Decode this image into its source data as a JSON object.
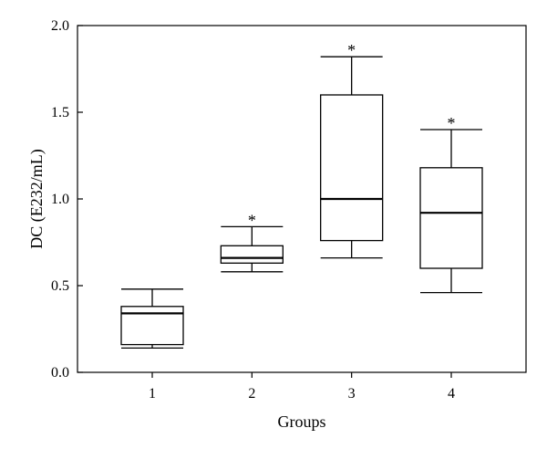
{
  "chart_data": {
    "type": "box",
    "title": "",
    "xlabel": "Groups",
    "ylabel": "DC (E232/mL)",
    "ylim": [
      0.0,
      2.0
    ],
    "yticks": [
      0.0,
      0.5,
      1.0,
      1.5,
      2.0
    ],
    "ytick_labels": [
      "0.0",
      "0.5",
      "1.0",
      "1.5",
      "2.0"
    ],
    "categories": [
      "1",
      "2",
      "3",
      "4"
    ],
    "boxes": [
      {
        "group": "1",
        "whisker_low": 0.14,
        "q1": 0.16,
        "median": 0.34,
        "q3": 0.38,
        "whisker_high": 0.48,
        "annotation": ""
      },
      {
        "group": "2",
        "whisker_low": 0.58,
        "q1": 0.63,
        "median": 0.66,
        "q3": 0.73,
        "whisker_high": 0.84,
        "annotation": "*"
      },
      {
        "group": "3",
        "whisker_low": 0.66,
        "q1": 0.76,
        "median": 1.0,
        "q3": 1.6,
        "whisker_high": 1.82,
        "annotation": "*"
      },
      {
        "group": "4",
        "whisker_low": 0.46,
        "q1": 0.6,
        "median": 0.92,
        "q3": 1.18,
        "whisker_high": 1.4,
        "annotation": "*"
      }
    ],
    "grid": false,
    "frame": "box"
  }
}
